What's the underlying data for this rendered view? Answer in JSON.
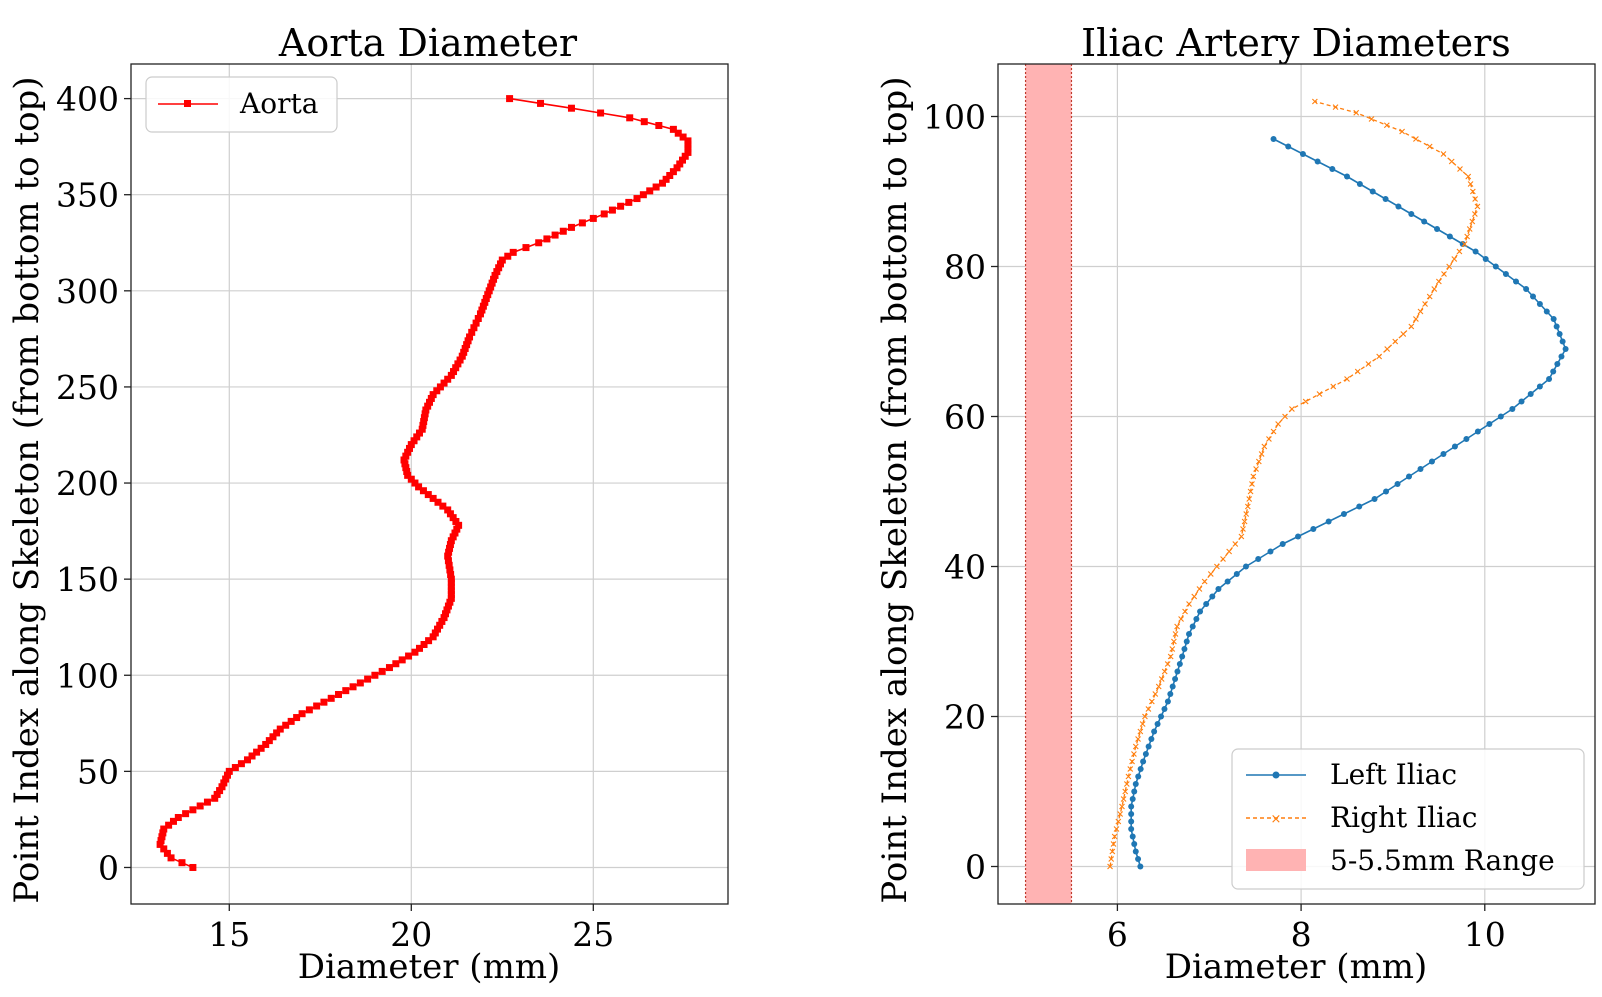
{
  "chart_data": [
    {
      "type": "line",
      "title": "Aorta Diameter",
      "xlabel": "Diameter (mm)",
      "ylabel": "Point Index along Skeleton (from bottom to top)",
      "xlim": [
        12.3,
        28.7
      ],
      "ylim": [
        -19,
        418
      ],
      "xticks": [
        15,
        20,
        25
      ],
      "yticks": [
        0,
        50,
        100,
        150,
        200,
        250,
        300,
        350,
        400
      ],
      "grid": true,
      "legend_position": "top-left",
      "series": [
        {
          "name": "Aorta",
          "color": "#ff0000",
          "marker": "square",
          "line_style": "solid",
          "keypoints": [
            [
              14.0,
              0
            ],
            [
              13.4,
              5
            ],
            [
              13.1,
              12
            ],
            [
              13.2,
              20
            ],
            [
              13.6,
              26
            ],
            [
              14.2,
              32
            ],
            [
              14.6,
              36
            ],
            [
              14.8,
              42
            ],
            [
              15.0,
              50
            ],
            [
              15.5,
              56
            ],
            [
              16.0,
              64
            ],
            [
              16.4,
              72
            ],
            [
              17.0,
              80
            ],
            [
              17.8,
              88
            ],
            [
              18.6,
              96
            ],
            [
              19.4,
              104
            ],
            [
              20.1,
              112
            ],
            [
              20.6,
              120
            ],
            [
              20.9,
              130
            ],
            [
              21.1,
              140
            ],
            [
              21.1,
              150
            ],
            [
              21.0,
              162
            ],
            [
              21.1,
              170
            ],
            [
              21.3,
              178
            ],
            [
              21.0,
              186
            ],
            [
              20.6,
              192
            ],
            [
              20.2,
              198
            ],
            [
              19.9,
              204
            ],
            [
              19.8,
              212
            ],
            [
              20.0,
              220
            ],
            [
              20.3,
              228
            ],
            [
              20.4,
              238
            ],
            [
              20.6,
              246
            ],
            [
              21.1,
              256
            ],
            [
              21.4,
              266
            ],
            [
              21.6,
              276
            ],
            [
              21.9,
              288
            ],
            [
              22.1,
              298
            ],
            [
              22.3,
              308
            ],
            [
              22.5,
              316
            ],
            [
              22.8,
              320
            ],
            [
              23.5,
              325
            ],
            [
              24.4,
              333
            ],
            [
              25.3,
              340
            ],
            [
              26.2,
              348
            ],
            [
              26.9,
              356
            ],
            [
              27.3,
              364
            ],
            [
              27.6,
              372
            ],
            [
              27.6,
              378
            ],
            [
              27.2,
              384
            ],
            [
              26.0,
              390
            ],
            [
              24.4,
              395
            ],
            [
              22.7,
              400
            ]
          ]
        }
      ]
    },
    {
      "type": "line",
      "title": "Iliac Artery Diameters",
      "xlabel": "Diameter (mm)",
      "ylabel": "Point Index along Skeleton (from bottom to top)",
      "xlim": [
        4.7,
        11.2
      ],
      "ylim": [
        -5,
        107
      ],
      "xticks": [
        6,
        8,
        10
      ],
      "yticks": [
        0,
        20,
        40,
        60,
        80,
        100
      ],
      "grid": true,
      "legend_position": "bottom-right",
      "band": {
        "name": "5-5.5mm Range",
        "x0": 5.0,
        "x1": 5.5,
        "color": "#ffb3b3",
        "edge_color": "#c0392b"
      },
      "series": [
        {
          "name": "Left Iliac",
          "color": "#1f77b4",
          "marker": "dot",
          "line_style": "solid",
          "keypoints": [
            [
              6.25,
              0
            ],
            [
              6.2,
              2
            ],
            [
              6.15,
              5
            ],
            [
              6.15,
              8
            ],
            [
              6.2,
              11
            ],
            [
              6.28,
              14
            ],
            [
              6.4,
              18
            ],
            [
              6.55,
              22
            ],
            [
              6.68,
              27
            ],
            [
              6.78,
              31
            ],
            [
              6.9,
              34
            ],
            [
              7.1,
              37
            ],
            [
              7.4,
              40
            ],
            [
              7.8,
              43
            ],
            [
              8.3,
              46
            ],
            [
              8.8,
              49
            ],
            [
              9.3,
              53
            ],
            [
              9.8,
              57
            ],
            [
              10.3,
              61
            ],
            [
              10.7,
              65
            ],
            [
              10.88,
              69
            ],
            [
              10.75,
              73
            ],
            [
              10.45,
              77
            ],
            [
              9.9,
              82
            ],
            [
              9.2,
              87
            ],
            [
              8.5,
              92
            ],
            [
              7.7,
              97
            ]
          ]
        },
        {
          "name": "Right Iliac",
          "color": "#ff7f0e",
          "marker": "x",
          "line_style": "dashed",
          "keypoints": [
            [
              5.92,
              0
            ],
            [
              5.97,
              4
            ],
            [
              6.05,
              8
            ],
            [
              6.12,
              12
            ],
            [
              6.2,
              16
            ],
            [
              6.3,
              20
            ],
            [
              6.45,
              24
            ],
            [
              6.58,
              28
            ],
            [
              6.65,
              32
            ],
            [
              6.78,
              35
            ],
            [
              6.95,
              38
            ],
            [
              7.15,
              41
            ],
            [
              7.35,
              44
            ],
            [
              7.42,
              48
            ],
            [
              7.48,
              52
            ],
            [
              7.6,
              56
            ],
            [
              7.75,
              59
            ],
            [
              7.9,
              61
            ],
            [
              8.2,
              63
            ],
            [
              8.5,
              65
            ],
            [
              8.85,
              68
            ],
            [
              9.2,
              72
            ],
            [
              9.5,
              78
            ],
            [
              9.78,
              83
            ],
            [
              9.92,
              88
            ],
            [
              9.82,
              92
            ],
            [
              9.55,
              95
            ],
            [
              9.1,
              98
            ],
            [
              8.6,
              100.5
            ],
            [
              8.15,
              102
            ]
          ]
        }
      ]
    }
  ]
}
